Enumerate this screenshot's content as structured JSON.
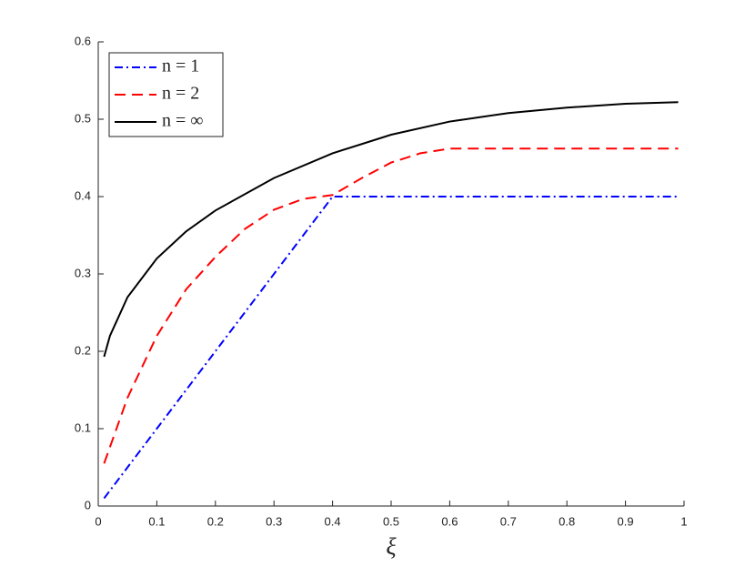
{
  "chart_data": {
    "type": "line",
    "xlabel": "ξ",
    "xlim": [
      0,
      1
    ],
    "xticks": [
      0,
      0.1,
      0.2,
      0.3,
      0.4,
      0.5,
      0.6,
      0.7,
      0.8,
      0.9,
      1
    ],
    "ylim": [
      0,
      0.6
    ],
    "yticks": [
      0,
      0.1,
      0.2,
      0.3,
      0.4,
      0.5,
      0.6
    ],
    "legend": "upper-left",
    "series": [
      {
        "name": "n = 1",
        "color": "#0000ff",
        "dash": "dashdot",
        "x": [
          0.01,
          0.4,
          0.99
        ],
        "values": [
          0.01,
          0.4,
          0.4
        ]
      },
      {
        "name": "n = 2",
        "color": "#ff0000",
        "dash": "dashed",
        "x": [
          0.01,
          0.05,
          0.1,
          0.15,
          0.2,
          0.25,
          0.3,
          0.35,
          0.4,
          0.45,
          0.5,
          0.55,
          0.6,
          0.7,
          0.8,
          0.9,
          0.99
        ],
        "values": [
          0.055,
          0.14,
          0.22,
          0.28,
          0.322,
          0.358,
          0.383,
          0.397,
          0.402,
          0.424,
          0.444,
          0.456,
          0.462,
          0.462,
          0.462,
          0.462,
          0.462
        ]
      },
      {
        "name": "n = ∞",
        "color": "#000000",
        "dash": "solid",
        "x": [
          0.01,
          0.02,
          0.05,
          0.1,
          0.15,
          0.2,
          0.3,
          0.4,
          0.5,
          0.6,
          0.7,
          0.8,
          0.9,
          0.99
        ],
        "values": [
          0.193,
          0.22,
          0.27,
          0.32,
          0.355,
          0.382,
          0.424,
          0.456,
          0.48,
          0.497,
          0.508,
          0.515,
          0.52,
          0.522
        ]
      }
    ]
  }
}
